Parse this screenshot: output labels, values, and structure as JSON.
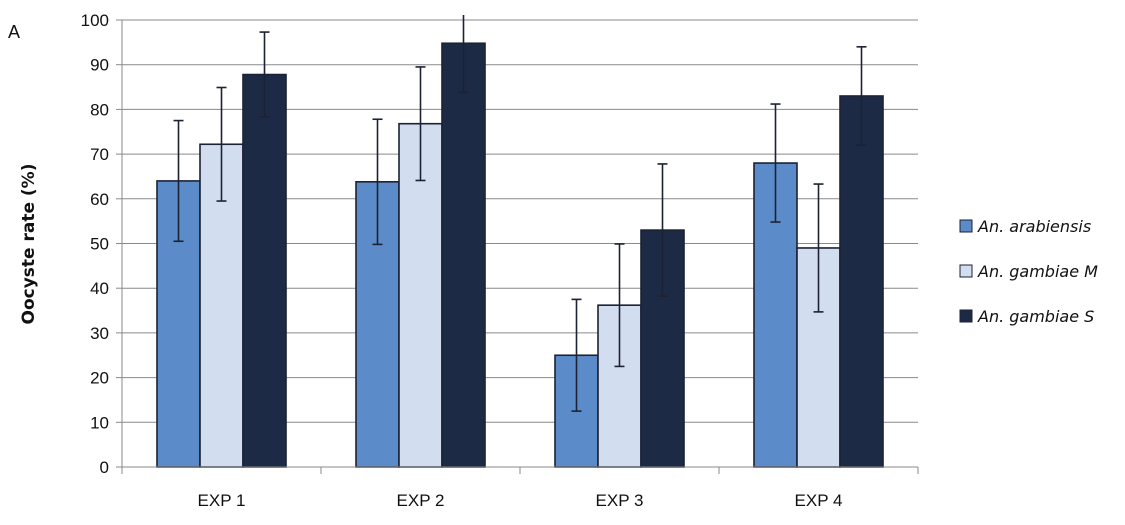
{
  "chart_data": {
    "type": "bar",
    "panel_label": "A",
    "title": "",
    "xlabel": "",
    "ylabel": "Oocyste rate (%)",
    "ylim": [
      0,
      100
    ],
    "yticks": [
      0,
      10,
      20,
      30,
      40,
      50,
      60,
      70,
      80,
      90,
      100
    ],
    "grid": true,
    "legend_position": "right",
    "categories": [
      "EXP 1",
      "EXP 2",
      "EXP 3",
      "EXP 4"
    ],
    "series": [
      {
        "name": "An. arabiensis",
        "color": "#5B8BC9",
        "values": [
          64,
          63.8,
          25,
          68
        ],
        "errors": [
          13.5,
          14,
          12.5,
          13.2
        ]
      },
      {
        "name": "An. gambiae M",
        "color": "#D2DEF0",
        "values": [
          72.2,
          76.8,
          36.2,
          49
        ],
        "errors": [
          12.7,
          12.7,
          13.7,
          14.3
        ]
      },
      {
        "name": "An. gambiae S",
        "color": "#1D2A45",
        "values": [
          87.8,
          94.8,
          53,
          83
        ],
        "errors": [
          9.5,
          11,
          14.8,
          11
        ]
      }
    ]
  }
}
